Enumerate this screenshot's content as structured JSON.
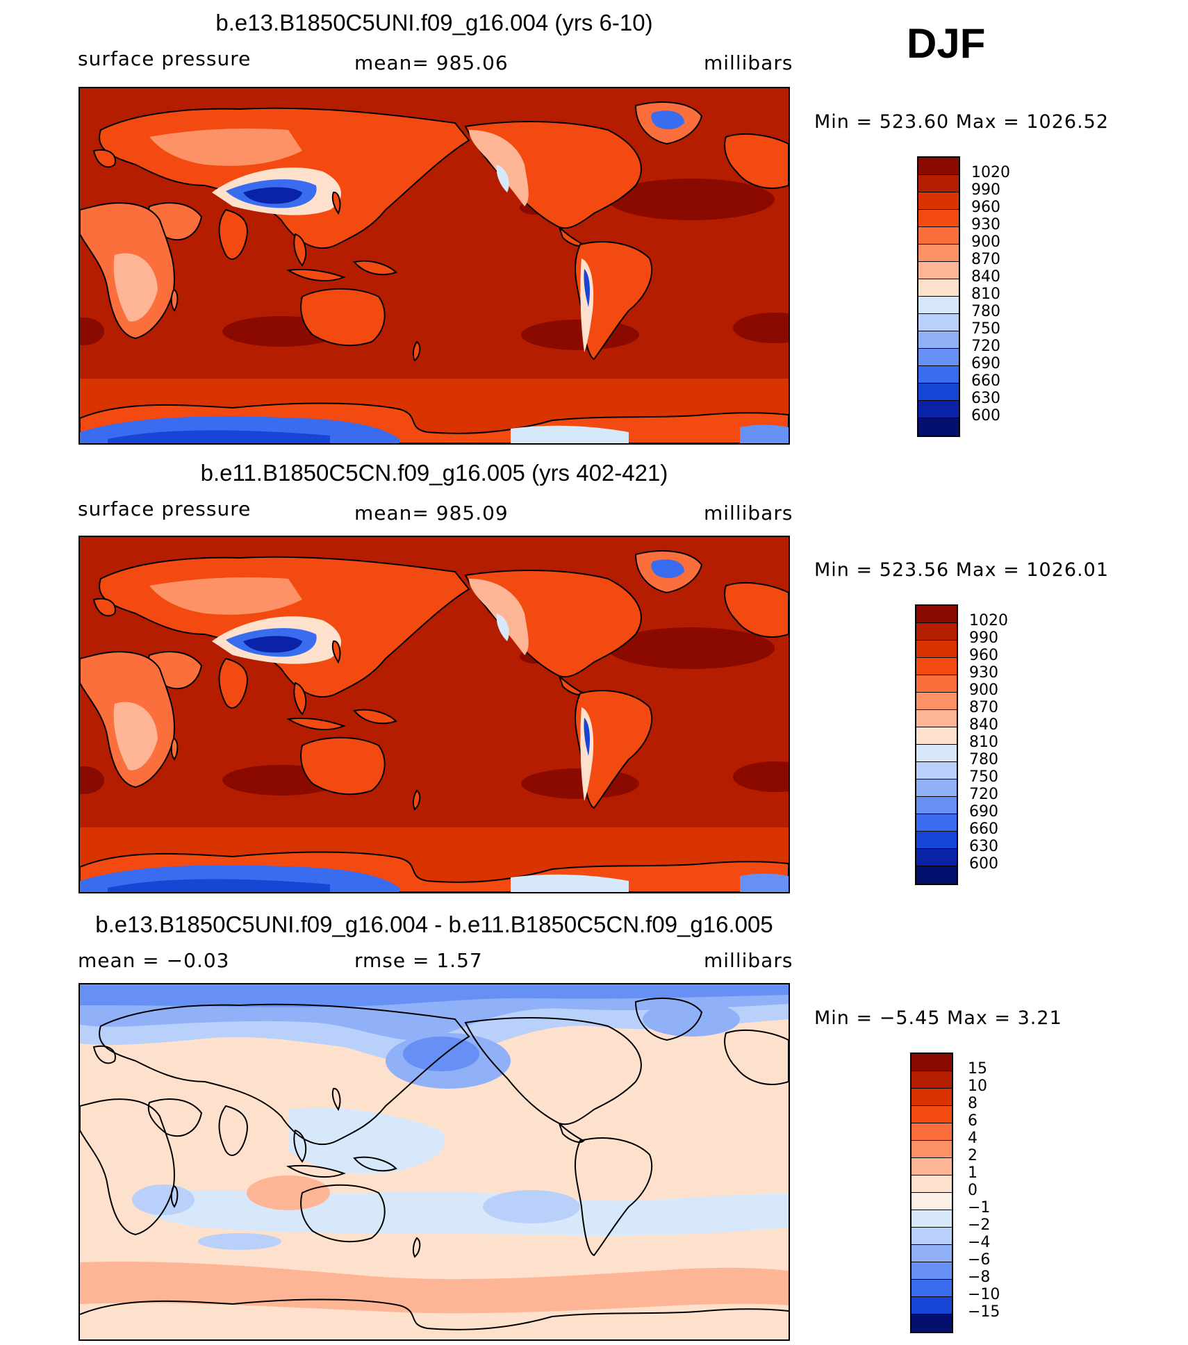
{
  "season": "DJF",
  "panels": [
    {
      "title": "b.e13.B1850C5UNI.f09_g16.004 (yrs 6-10)",
      "left_label": "surface pressure",
      "center_label": "mean=  985.06",
      "units": "millibars",
      "minmax": "Min  =  523.60  Max  =  1026.52",
      "levels": [
        "1020",
        "990",
        "960",
        "930",
        "900",
        "870",
        "840",
        "810",
        "780",
        "750",
        "720",
        "690",
        "660",
        "630",
        "600"
      ],
      "colors": [
        "#8a0a00",
        "#b51d00",
        "#d93400",
        "#f24a10",
        "#fb6f3c",
        "#fc9266",
        "#fdb595",
        "#fee1cc",
        "#d8e8fb",
        "#b8d0fa",
        "#90b0f8",
        "#6690f4",
        "#3a6cf0",
        "#1746d6",
        "#0a22a8",
        "#03106e"
      ],
      "ocean_color": "#b51d00"
    },
    {
      "title": "b.e11.B1850C5CN.f09_g16.005 (yrs 402-421)",
      "left_label": "surface pressure",
      "center_label": "mean=  985.09",
      "units": "millibars",
      "minmax": "Min  =  523.56  Max  =  1026.01",
      "levels": [
        "1020",
        "990",
        "960",
        "930",
        "900",
        "870",
        "840",
        "810",
        "780",
        "750",
        "720",
        "690",
        "660",
        "630",
        "600"
      ],
      "colors": [
        "#8a0a00",
        "#b51d00",
        "#d93400",
        "#f24a10",
        "#fb6f3c",
        "#fc9266",
        "#fdb595",
        "#fee1cc",
        "#d8e8fb",
        "#b8d0fa",
        "#90b0f8",
        "#6690f4",
        "#3a6cf0",
        "#1746d6",
        "#0a22a8",
        "#03106e"
      ],
      "ocean_color": "#b51d00"
    },
    {
      "title": "b.e13.B1850C5UNI.f09_g16.004 - b.e11.B1850C5CN.f09_g16.005",
      "left_label": "mean  =    −0.03",
      "center_label": "rmse  =     1.57",
      "units": "millibars",
      "minmax": "Min  =    −5.45  Max  =      3.21",
      "levels": [
        "15",
        "10",
        "8",
        "6",
        "4",
        "2",
        "1",
        "0",
        "−1",
        "−2",
        "−4",
        "−6",
        "−8",
        "−10",
        "−15"
      ],
      "colors": [
        "#8a0a00",
        "#b51d00",
        "#d93400",
        "#f24a10",
        "#fb6f3c",
        "#fc9266",
        "#fdb595",
        "#fee1cc",
        "#fdf0e4",
        "#d8e8fb",
        "#b8d0fa",
        "#90b0f8",
        "#6690f4",
        "#3a6cf0",
        "#1746d6",
        "#03106e"
      ],
      "ocean_color": "#fde4d2"
    }
  ]
}
